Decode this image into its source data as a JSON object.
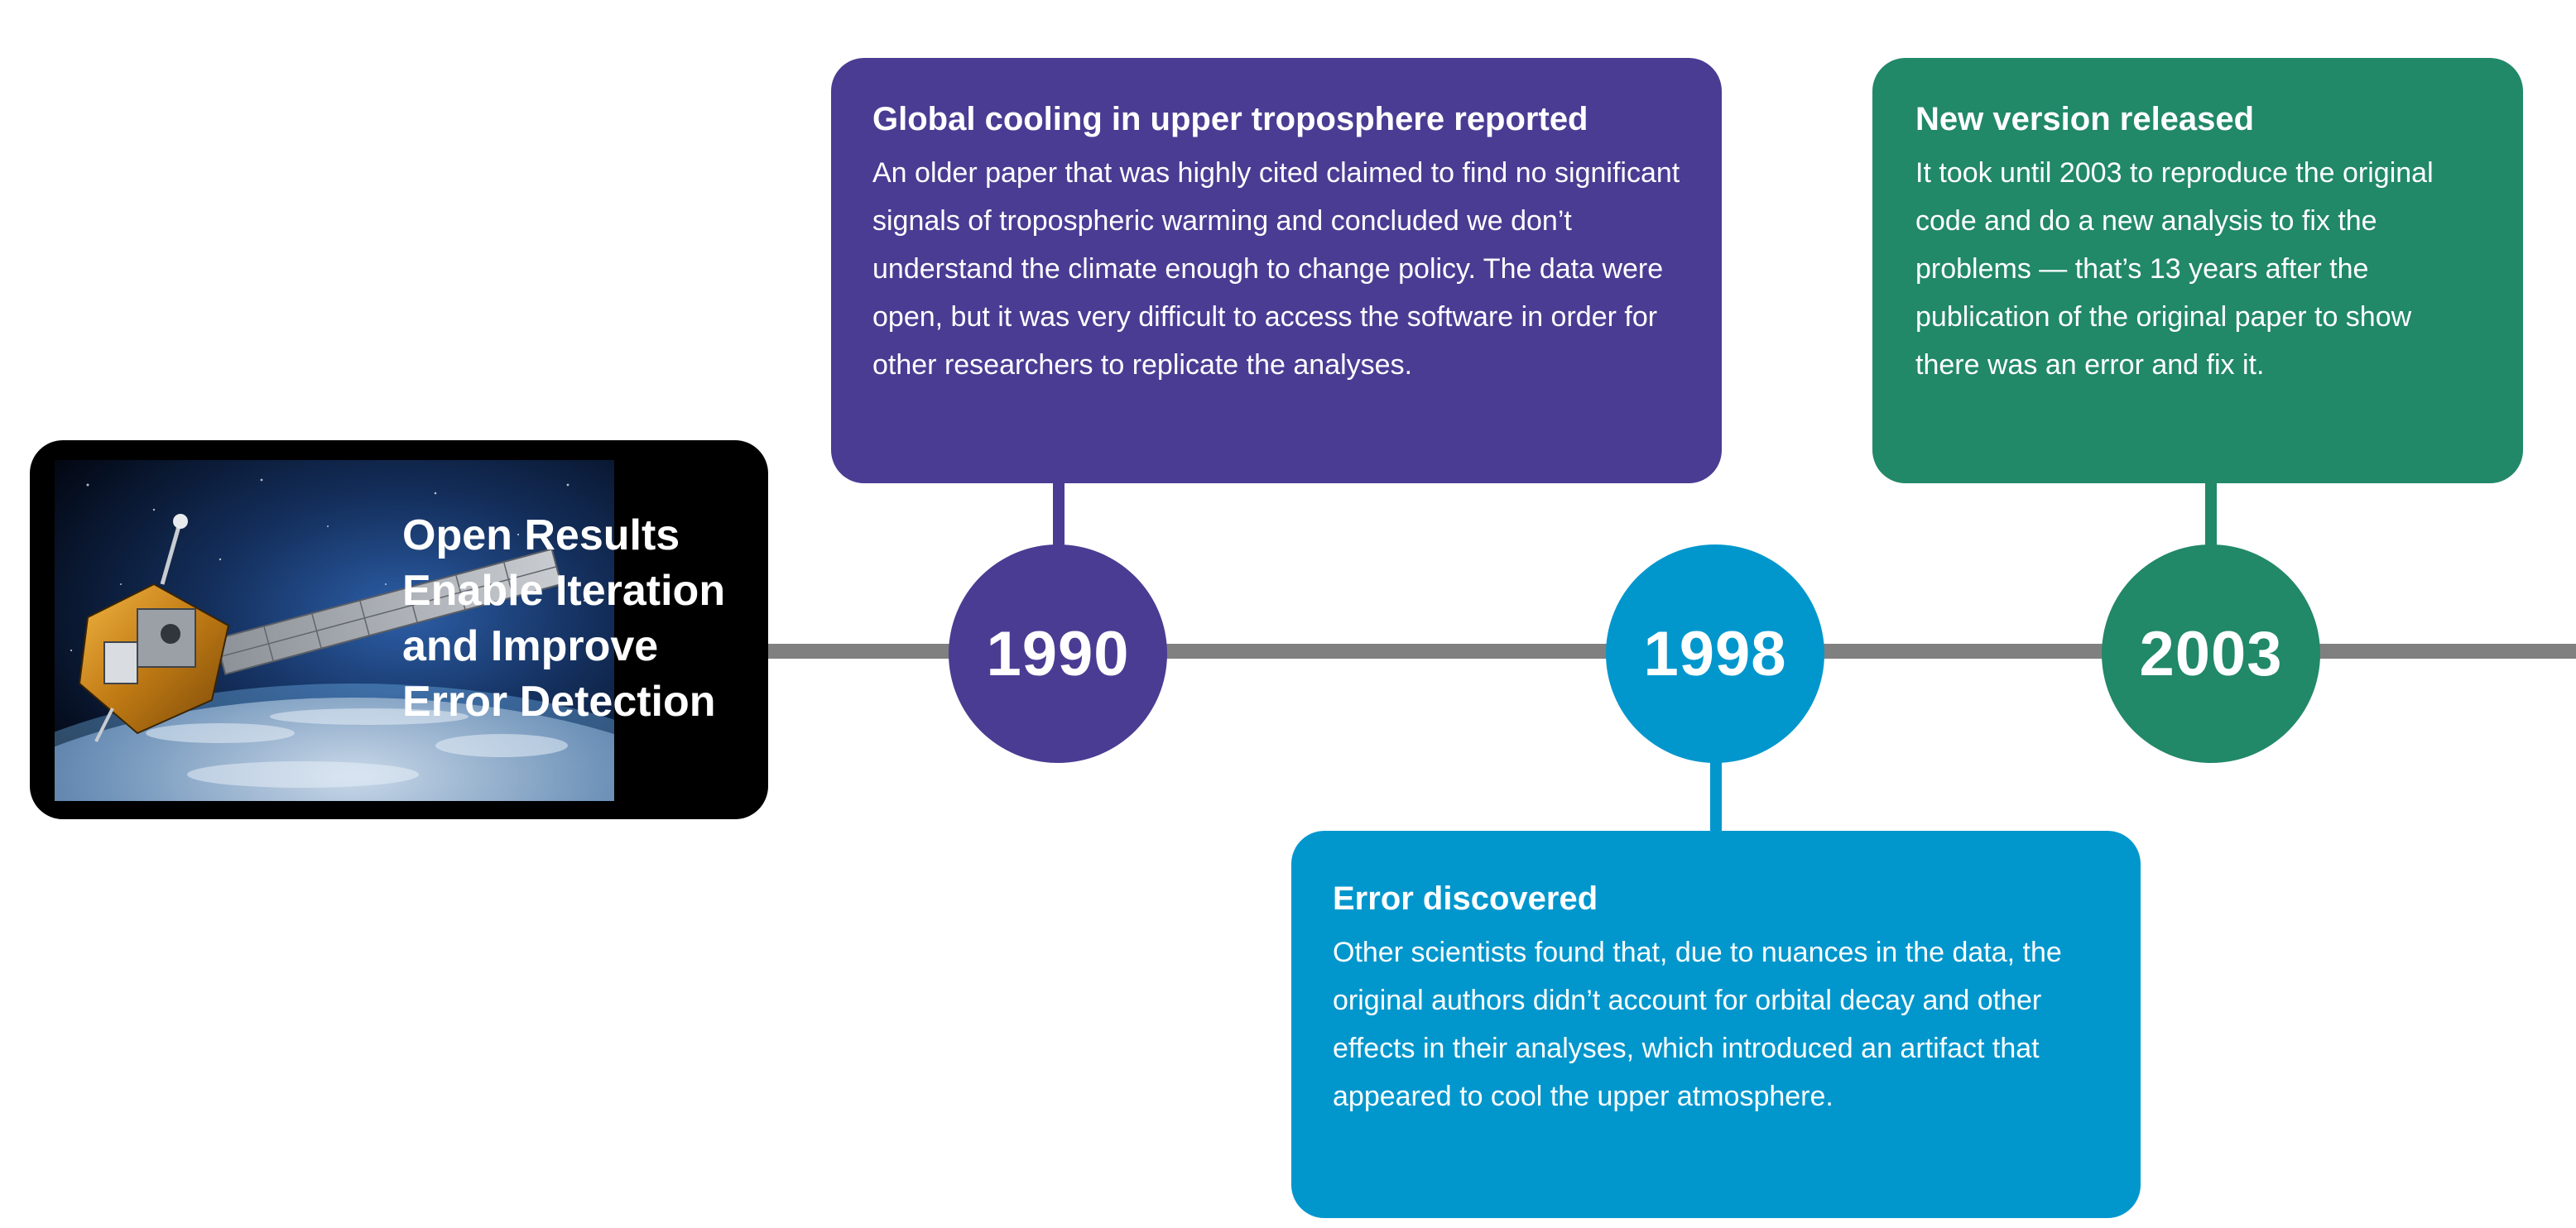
{
  "colors": {
    "purple": "#4a3c93",
    "blue": "#0197cd",
    "green": "#218868",
    "timeline": "#808080",
    "title_card_bg": "#000000"
  },
  "title_card": {
    "image": "satellite-orbiting-earth",
    "title": "Open Results\nEnable Iteration\nand Improve\nError Detection"
  },
  "events": [
    {
      "year": "1990",
      "color": "#4a3c93",
      "title": "Global cooling in upper troposphere reported",
      "body": "An older paper that was highly cited claimed to find no significant signals of tropospheric warming and concluded we don’t understand the climate enough to change policy. The data were open, but it was very difficult to access the software in order for other researchers to replicate the analyses."
    },
    {
      "year": "1998",
      "color": "#0197cd",
      "title": "Error discovered",
      "body": "Other scientists found that, due to nuances in the data, the original authors didn’t account for orbital decay and other effects in their analyses, which introduced an artifact that appeared to cool the upper atmosphere."
    },
    {
      "year": "2003",
      "color": "#218868",
      "title": "New version released",
      "body": "It took until 2003 to reproduce the original code and do a new analysis to fix the problems — that’s 13 years after the publication of the original paper to show there was an error and fix it."
    }
  ]
}
